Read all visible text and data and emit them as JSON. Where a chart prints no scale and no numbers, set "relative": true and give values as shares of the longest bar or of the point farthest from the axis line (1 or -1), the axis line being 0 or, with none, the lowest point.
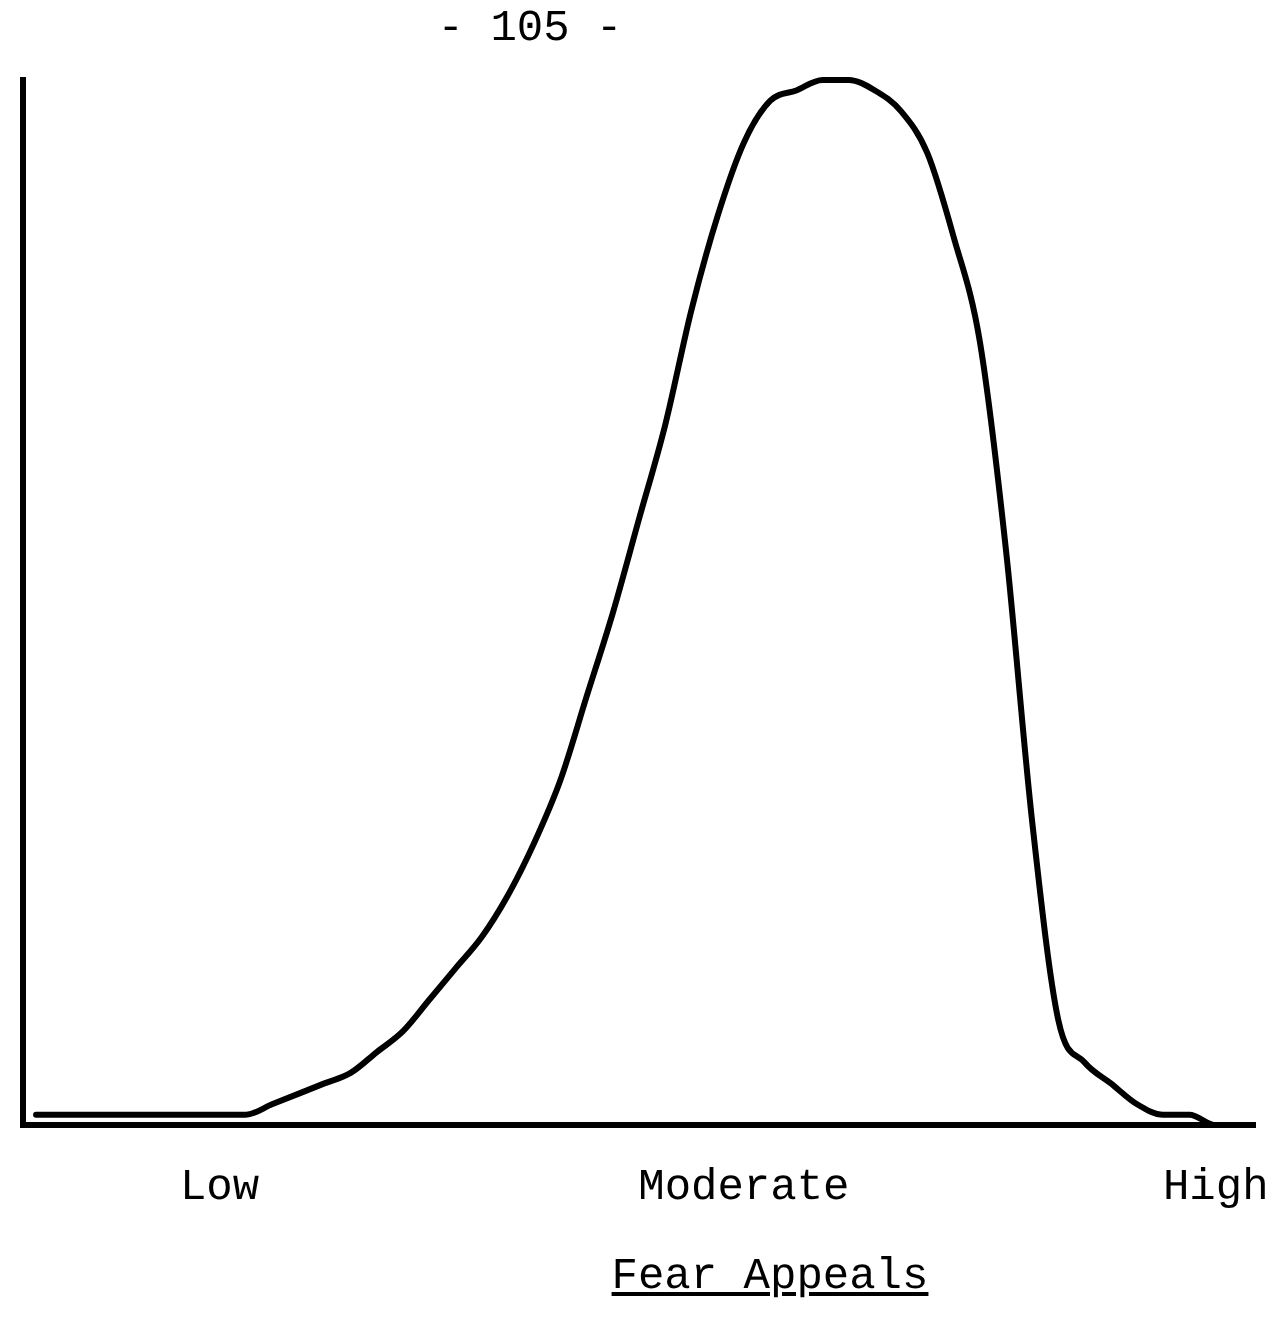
{
  "chart_data": {
    "type": "line",
    "relative": true,
    "xlabel": "Fear Appeals",
    "annotations": [
      "- 105 -"
    ],
    "color": "#000000",
    "grid": false,
    "legend": false,
    "marker": "none",
    "line_style": "solid",
    "categories": [
      null,
      null,
      null,
      null,
      null,
      null,
      null,
      "Low",
      null,
      null,
      null,
      null,
      null,
      null,
      null,
      null,
      null,
      null,
      null,
      null,
      null,
      null,
      null,
      null,
      null,
      null,
      null,
      "Moderate",
      null,
      null,
      null,
      null,
      null,
      null,
      null,
      null,
      null,
      null,
      null,
      null,
      null,
      null,
      null,
      null,
      null,
      "High",
      null
    ],
    "values": [
      0.01,
      0.01,
      0.01,
      0.01,
      0.01,
      0.01,
      0.01,
      0.01,
      0.01,
      0.02,
      0.03,
      0.04,
      0.05,
      0.07,
      0.09,
      0.12,
      0.15,
      0.18,
      0.22,
      0.27,
      0.33,
      0.41,
      0.49,
      0.58,
      0.67,
      0.78,
      0.87,
      0.94,
      0.98,
      0.99,
      1.0,
      1.0,
      0.99,
      0.97,
      0.93,
      0.85,
      0.75,
      0.55,
      0.29,
      0.1,
      0.06,
      0.04,
      0.02,
      0.01,
      0.01,
      0,
      0
    ]
  }
}
